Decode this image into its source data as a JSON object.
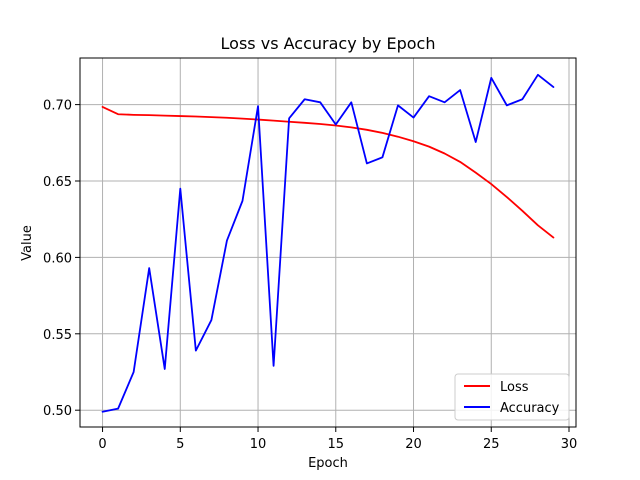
{
  "chart_data": {
    "type": "line",
    "title": "Loss vs Accuracy by Epoch",
    "xlabel": "Epoch",
    "ylabel": "Value",
    "xlim": [
      -1.45,
      30.45
    ],
    "ylim": [
      0.489,
      0.7305
    ],
    "xticks": [
      0,
      5,
      10,
      15,
      20,
      25,
      30
    ],
    "yticks": [
      0.5,
      0.55,
      0.6,
      0.65,
      0.7
    ],
    "xtick_labels": [
      "0",
      "5",
      "10",
      "15",
      "20",
      "25",
      "30"
    ],
    "ytick_labels": [
      "0.50",
      "0.55",
      "0.60",
      "0.65",
      "0.70"
    ],
    "grid": true,
    "legend_position": "lower-right",
    "x": [
      0,
      1,
      2,
      3,
      4,
      5,
      6,
      7,
      8,
      9,
      10,
      11,
      12,
      13,
      14,
      15,
      16,
      17,
      18,
      19,
      20,
      21,
      22,
      23,
      24,
      25,
      26,
      27,
      28,
      29
    ],
    "series": [
      {
        "name": "Loss",
        "color": "#ff0000",
        "values": [
          0.6985,
          0.6937,
          0.6933,
          0.6931,
          0.6928,
          0.6925,
          0.6922,
          0.6918,
          0.6914,
          0.6908,
          0.6902,
          0.6895,
          0.6888,
          0.6881,
          0.6873,
          0.6863,
          0.6851,
          0.6835,
          0.6815,
          0.679,
          0.676,
          0.6725,
          0.668,
          0.6625,
          0.6555,
          0.648,
          0.6395,
          0.6305,
          0.621,
          0.613
        ]
      },
      {
        "name": "Accuracy",
        "color": "#0000ff",
        "values": [
          0.499,
          0.501,
          0.525,
          0.593,
          0.527,
          0.645,
          0.539,
          0.559,
          0.611,
          0.637,
          0.699,
          0.529,
          0.691,
          0.7035,
          0.7015,
          0.687,
          0.7015,
          0.6615,
          0.6655,
          0.6995,
          0.6915,
          0.7055,
          0.7015,
          0.7095,
          0.6755,
          0.7175,
          0.6995,
          0.7035,
          0.7195,
          0.7115
        ]
      }
    ]
  }
}
